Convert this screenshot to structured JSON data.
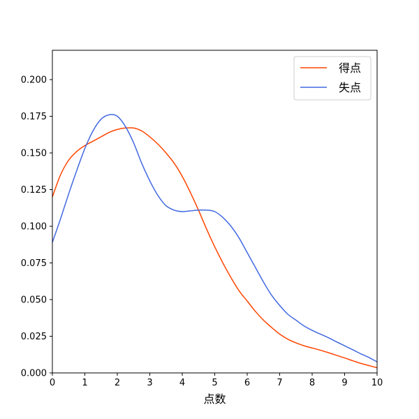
{
  "chart_data": {
    "type": "line",
    "title": "",
    "xlabel": "点数",
    "ylabel": "",
    "xlim": [
      0,
      10
    ],
    "ylim": [
      0,
      0.22
    ],
    "xticks": [
      "0",
      "1",
      "2",
      "3",
      "4",
      "5",
      "6",
      "7",
      "8",
      "9",
      "10"
    ],
    "yticks": [
      "0.000",
      "0.025",
      "0.050",
      "0.075",
      "0.100",
      "0.125",
      "0.150",
      "0.175",
      "0.200"
    ],
    "grid": false,
    "legend_position": "top-right",
    "series": [
      {
        "name": "得点",
        "color": "#ff4500",
        "x": [
          0,
          0.25,
          0.5,
          0.75,
          1,
          1.25,
          1.5,
          1.75,
          2,
          2.25,
          2.5,
          2.75,
          3,
          3.25,
          3.5,
          3.75,
          4,
          4.25,
          4.5,
          4.75,
          5,
          5.25,
          5.5,
          5.75,
          6,
          6.25,
          6.5,
          6.75,
          7,
          7.25,
          7.5,
          7.75,
          8,
          8.25,
          8.5,
          8.75,
          9,
          9.25,
          9.5,
          9.75,
          10
        ],
        "y": [
          0.12,
          0.135,
          0.145,
          0.151,
          0.155,
          0.158,
          0.161,
          0.164,
          0.166,
          0.167,
          0.167,
          0.165,
          0.161,
          0.156,
          0.15,
          0.143,
          0.134,
          0.123,
          0.111,
          0.098,
          0.086,
          0.075,
          0.065,
          0.056,
          0.049,
          0.042,
          0.036,
          0.031,
          0.0265,
          0.023,
          0.0205,
          0.0185,
          0.017,
          0.0155,
          0.0138,
          0.012,
          0.0102,
          0.0083,
          0.0065,
          0.005,
          0.0035
        ]
      },
      {
        "name": "失点",
        "color": "#4169e1",
        "x": [
          0,
          0.25,
          0.5,
          0.75,
          1,
          1.25,
          1.5,
          1.75,
          2,
          2.25,
          2.5,
          2.75,
          3,
          3.25,
          3.5,
          3.75,
          4,
          4.25,
          4.5,
          4.75,
          5,
          5.25,
          5.5,
          5.75,
          6,
          6.25,
          6.5,
          6.75,
          7,
          7.25,
          7.5,
          7.75,
          8,
          8.25,
          8.5,
          8.75,
          9,
          9.25,
          9.5,
          9.75,
          10
        ],
        "y": [
          0.089,
          0.105,
          0.122,
          0.138,
          0.153,
          0.165,
          0.173,
          0.176,
          0.175,
          0.168,
          0.157,
          0.143,
          0.131,
          0.121,
          0.114,
          0.111,
          0.11,
          0.1105,
          0.111,
          0.111,
          0.11,
          0.106,
          0.1,
          0.092,
          0.082,
          0.072,
          0.062,
          0.053,
          0.046,
          0.04,
          0.036,
          0.032,
          0.029,
          0.0265,
          0.024,
          0.0212,
          0.0185,
          0.0158,
          0.013,
          0.0105,
          0.0075
        ]
      }
    ]
  }
}
